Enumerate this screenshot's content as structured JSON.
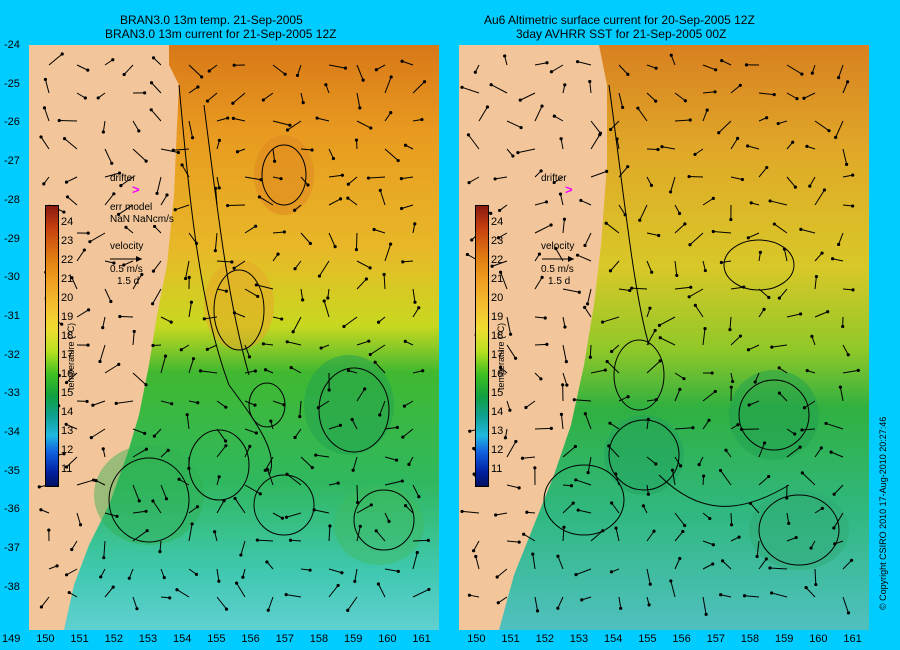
{
  "left_panel": {
    "title_line1": "BRAN3.0 13m temp. 21-Sep-2005",
    "title_line2": "BRAN3.0 13m current for 21-Sep-2005 12Z",
    "drifter_label": "drifter",
    "err_model_line1": "err model",
    "err_model_line2": "NaN NaNcm/s",
    "velocity_label": "velocity",
    "velocity_scale": "0.5 m/s",
    "velocity_days": "1.5 d"
  },
  "right_panel": {
    "title_line1": "Au6 Altimetric surface current for 20-Sep-2005 12Z",
    "title_line2": "3day AVHRR SST for 21-Sep-2005 00Z",
    "drifter_label": "drifter",
    "velocity_label": "velocity",
    "velocity_scale": "0.5 m/s",
    "velocity_days": "1.5 d"
  },
  "colorbar": {
    "title": "temperature (°C)",
    "ticks": [
      "24",
      "23",
      "22",
      "21",
      "20",
      "19",
      "18",
      "17",
      "16",
      "15",
      "14",
      "13",
      "12",
      "11"
    ]
  },
  "lat_labels": [
    "-24",
    "-25",
    "-26",
    "-27",
    "-28",
    "-29",
    "-30",
    "-31",
    "-32",
    "-33",
    "-34",
    "-35",
    "-36",
    "-37",
    "-38"
  ],
  "lon_labels_left": [
    "149",
    "150",
    "151",
    "152",
    "153",
    "154",
    "155",
    "156",
    "157",
    "158",
    "159",
    "160",
    "161"
  ],
  "lon_labels_right": [
    "",
    "150",
    "151",
    "152",
    "153",
    "154",
    "155",
    "156",
    "157",
    "158",
    "159",
    "160",
    "161"
  ],
  "copyright": "© Copyright CSIRO 2010   17-Aug-2010 20:27:46",
  "colors": {
    "background": "#00ccff",
    "land": "#f2c69a",
    "drifter": "#ff00ff"
  }
}
